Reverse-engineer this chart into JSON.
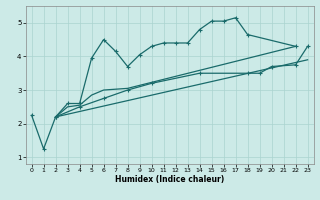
{
  "xlabel": "Humidex (Indice chaleur)",
  "xlim": [
    -0.5,
    23.5
  ],
  "ylim": [
    0.8,
    5.5
  ],
  "yticks": [
    1,
    2,
    3,
    4,
    5
  ],
  "xticks": [
    0,
    1,
    2,
    3,
    4,
    5,
    6,
    7,
    8,
    9,
    10,
    11,
    12,
    13,
    14,
    15,
    16,
    17,
    18,
    19,
    20,
    21,
    22,
    23
  ],
  "bg_color": "#cceae7",
  "grid_color": "#aad4d0",
  "line_color": "#1a6b6b",
  "line1_x": [
    0,
    1,
    2,
    3,
    4,
    5,
    6,
    7,
    8,
    9,
    10,
    11,
    12,
    13,
    14,
    15,
    16,
    17,
    18,
    22
  ],
  "line1_y": [
    2.25,
    1.25,
    2.2,
    2.6,
    2.6,
    3.95,
    4.5,
    4.15,
    3.7,
    4.05,
    4.3,
    4.4,
    4.4,
    4.4,
    4.8,
    5.05,
    5.05,
    5.15,
    4.65,
    4.3
  ],
  "line2_x": [
    2,
    3,
    4,
    5,
    6,
    8,
    22
  ],
  "line2_y": [
    2.2,
    2.5,
    2.55,
    2.85,
    3.0,
    3.05,
    4.3
  ],
  "line3_x": [
    2,
    23
  ],
  "line3_y": [
    2.2,
    3.9
  ],
  "line4_x": [
    2,
    4,
    6,
    8,
    10,
    14,
    18,
    19,
    20,
    22,
    23
  ],
  "line4_y": [
    2.2,
    2.5,
    2.75,
    3.0,
    3.2,
    3.5,
    3.5,
    3.5,
    3.7,
    3.75,
    4.3
  ]
}
